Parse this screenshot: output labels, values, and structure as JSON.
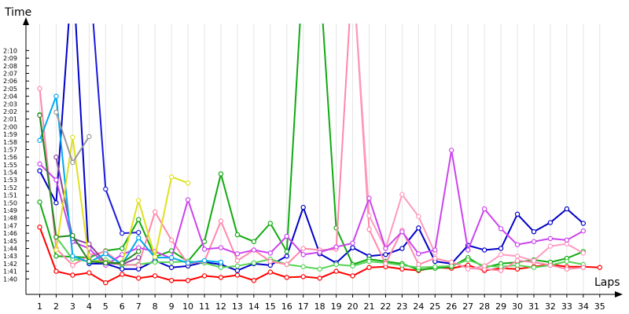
{
  "chart_data": {
    "type": "line",
    "ylabel": "Time",
    "xlabel": "Laps",
    "x": [
      1,
      2,
      3,
      4,
      5,
      6,
      7,
      8,
      9,
      10,
      11,
      12,
      13,
      14,
      15,
      16,
      17,
      18,
      19,
      20,
      21,
      22,
      23,
      24,
      25,
      26,
      27,
      28,
      29,
      30,
      31,
      32,
      33,
      34,
      35
    ],
    "yticks": [
      "1:40",
      "1:41",
      "1:42",
      "1:43",
      "1:44",
      "1:45",
      "1:46",
      "1:47",
      "1:48",
      "1:49",
      "1:50",
      "1:51",
      "1:52",
      "1:53",
      "1:54",
      "1:55",
      "1:56",
      "1:57",
      "1:58",
      "1:59",
      "2:00",
      "2:01",
      "2:02",
      "2:03",
      "2:04",
      "2:05",
      "2:06",
      "2:07",
      "2:08",
      "2:09",
      "2:10"
    ],
    "ylim_seconds": [
      99,
      132
    ],
    "series": [
      {
        "color": "#ff0000",
        "values": [
          106.8,
          101,
          100.5,
          100.8,
          99.5,
          100.6,
          100.1,
          100.4,
          99.8,
          99.8,
          100.4,
          100.2,
          100.5,
          99.8,
          100.9,
          100.2,
          100.3,
          100.1,
          101,
          100.4,
          101.5,
          101.6,
          101.3,
          101.1,
          101.5,
          101.4,
          101.8,
          101.1,
          101.4,
          101.3,
          101.6,
          101.9,
          101.6,
          101.6,
          101.5
        ]
      },
      {
        "color": "#0000c8",
        "values": [
          114.2,
          110,
          141,
          102,
          102,
          101.3,
          101.3,
          102.4,
          101.5,
          101.7,
          102.2,
          101.9,
          101.1,
          102,
          101.8,
          103,
          109.4,
          103.3,
          102.1,
          104.1,
          103,
          103.2,
          104,
          106.7,
          102.3,
          102,
          104.4,
          103.8,
          104,
          108.5,
          106.2,
          107.4,
          109.2,
          107.3,
          null
        ]
      },
      {
        "color": "#1a1adc",
        "values": [
          null,
          null,
          null,
          141,
          111.8,
          106,
          106.1,
          null,
          null,
          null,
          null,
          null,
          null,
          null,
          null,
          null,
          null,
          null,
          null,
          null,
          null,
          null,
          null,
          null,
          null,
          null,
          null,
          null,
          null,
          null,
          null,
          null,
          null,
          null,
          null
        ]
      },
      {
        "color": "#11aa11",
        "values": [
          110.1,
          103,
          102.9,
          102.8,
          103.7,
          104,
          107.8,
          102.9,
          103.7,
          102.3,
          104.9,
          113.8,
          105.8,
          104.9,
          107.3,
          103.6,
          141,
          140,
          106.7,
          101.9,
          102.6,
          102.3,
          102,
          101.2,
          101.4,
          101.6,
          102.8,
          101.5,
          102,
          102.2,
          102.5,
          102.2,
          102.7,
          103.6,
          null
        ]
      },
      {
        "color": "#55d455",
        "values": [
          121.6,
          105.5,
          102.6,
          102.3,
          102.5,
          101.8,
          101.9,
          102.2,
          102.2,
          102.3,
          102.1,
          101.5,
          101.7,
          102.1,
          102.6,
          101.9,
          101.6,
          101.3,
          101.9,
          101.7,
          102.3,
          102.1,
          101.8,
          101.5,
          101.6,
          101.7,
          102.5,
          101.7,
          101.6,
          101.8,
          101.5,
          101.8,
          102.3,
          101.9,
          null
        ]
      },
      {
        "color": "#ff88aa",
        "values": [
          125,
          104,
          101.8,
          103.1,
          103.6,
          101.9,
          101.8,
          108.8,
          105.1,
          102,
          102.3,
          107.6,
          102.4,
          103.8,
          102.3,
          101.9,
          104,
          103.8,
          103.9,
          141,
          106.5,
          102,
          106.4,
          101.9,
          102.7,
          102.2,
          101.4,
          101.3,
          101.1,
          102.4,
          102.2,
          101.8,
          101.3,
          101.5,
          null
        ]
      },
      {
        "color": "#ff9ac0",
        "values": [
          null,
          null,
          null,
          null,
          null,
          null,
          null,
          null,
          null,
          null,
          null,
          null,
          null,
          null,
          null,
          null,
          null,
          null,
          141,
          141,
          108.3,
          104,
          111.1,
          108.2,
          103.4,
          null,
          101.3,
          101.7,
          103.2,
          103,
          102.4,
          104.3,
          104.6,
          103.4,
          null
        ]
      },
      {
        "color": "#cc44ee",
        "values": [
          115.1,
          113,
          104.9,
          104,
          101.8,
          103.2,
          104.1,
          103.6,
          102.7,
          110.4,
          103.9,
          104.1,
          103.3,
          103.8,
          103.4,
          105.6,
          103.2,
          103.5,
          104.2,
          104.7,
          110.6,
          104,
          106.2,
          103.3,
          103.8,
          116.9,
          103.8,
          109.2,
          106.6,
          104.5,
          104.9,
          105.3,
          105.1,
          106.3,
          null
        ]
      },
      {
        "color": "#884499",
        "values": [
          null,
          116,
          105.3,
          104.6,
          102.1,
          101.9,
          102.8,
          null,
          null,
          null,
          null,
          null,
          null,
          null,
          null,
          null,
          null,
          null,
          null,
          null,
          null,
          null,
          null,
          null,
          null,
          null,
          null,
          null,
          null,
          null,
          null,
          null,
          null,
          null,
          null
        ]
      },
      {
        "color": "#00aaee",
        "values": [
          118.2,
          124,
          103,
          102.2,
          103.3,
          101.9,
          105.4,
          102.8,
          102.8,
          102.1,
          102.4,
          102.2,
          null,
          null,
          null,
          null,
          null,
          null,
          null,
          null,
          null,
          null,
          null,
          null,
          null,
          null,
          null,
          null,
          null,
          null,
          null,
          null,
          null,
          null,
          null
        ]
      },
      {
        "color": "#e0e020",
        "values": [
          null,
          103.8,
          118.6,
          102.4,
          102.2,
          102,
          110.3,
          102.9,
          113.4,
          112.6,
          null,
          null,
          null,
          null,
          null,
          null,
          null,
          null,
          null,
          null,
          null,
          null,
          null,
          null,
          null,
          null,
          null,
          null,
          null,
          null,
          null,
          null,
          null,
          null,
          null
        ]
      },
      {
        "color": "#999999",
        "values": [
          null,
          121.9,
          115.3,
          118.7,
          null,
          null,
          null,
          null,
          null,
          null,
          null,
          null,
          null,
          null,
          null,
          null,
          null,
          null,
          null,
          null,
          null,
          null,
          null,
          null,
          null,
          null,
          null,
          null,
          null,
          null,
          null,
          null,
          null,
          null,
          null
        ]
      },
      {
        "color": "#228822",
        "values": [
          121.5,
          105.5,
          105.7,
          102.3,
          102.1,
          102.1,
          103.6,
          null,
          null,
          null,
          null,
          null,
          null,
          null,
          null,
          null,
          null,
          null,
          null,
          null,
          null,
          null,
          null,
          null,
          null,
          null,
          null,
          null,
          null,
          null,
          null,
          null,
          null,
          null,
          null
        ]
      }
    ]
  }
}
